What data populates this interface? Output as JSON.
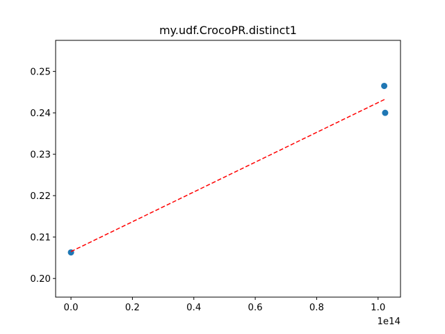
{
  "chart_data": {
    "type": "scatter",
    "title": "my.udf.CrocoPR.distinct1",
    "xlabel": "",
    "ylabel": "",
    "x_offset_text": "1e14",
    "xlim": [
      -0.05,
      1.073
    ],
    "ylim": [
      0.1955,
      0.2575
    ],
    "x_ticks": [
      0.0,
      0.2,
      0.4,
      0.6,
      0.8,
      1.0
    ],
    "x_tick_labels": [
      "0.0",
      "0.2",
      "0.4",
      "0.6",
      "0.8",
      "1.0"
    ],
    "y_ticks": [
      0.2,
      0.21,
      0.22,
      0.23,
      0.24,
      0.25
    ],
    "y_tick_labels": [
      "0.20",
      "0.21",
      "0.22",
      "0.23",
      "0.24",
      "0.25"
    ],
    "grid": false,
    "series": [
      {
        "type": "scatter",
        "color": "#1f77b4",
        "points": [
          {
            "x": 0.0,
            "y": 0.2063
          },
          {
            "x": 1.02,
            "y": 0.2465
          },
          {
            "x": 1.023,
            "y": 0.24
          }
        ]
      },
      {
        "type": "line",
        "style": "dashed",
        "color": "#ff0000",
        "points": [
          {
            "x": 0.0,
            "y": 0.2065
          },
          {
            "x": 1.023,
            "y": 0.2433
          }
        ]
      }
    ]
  }
}
